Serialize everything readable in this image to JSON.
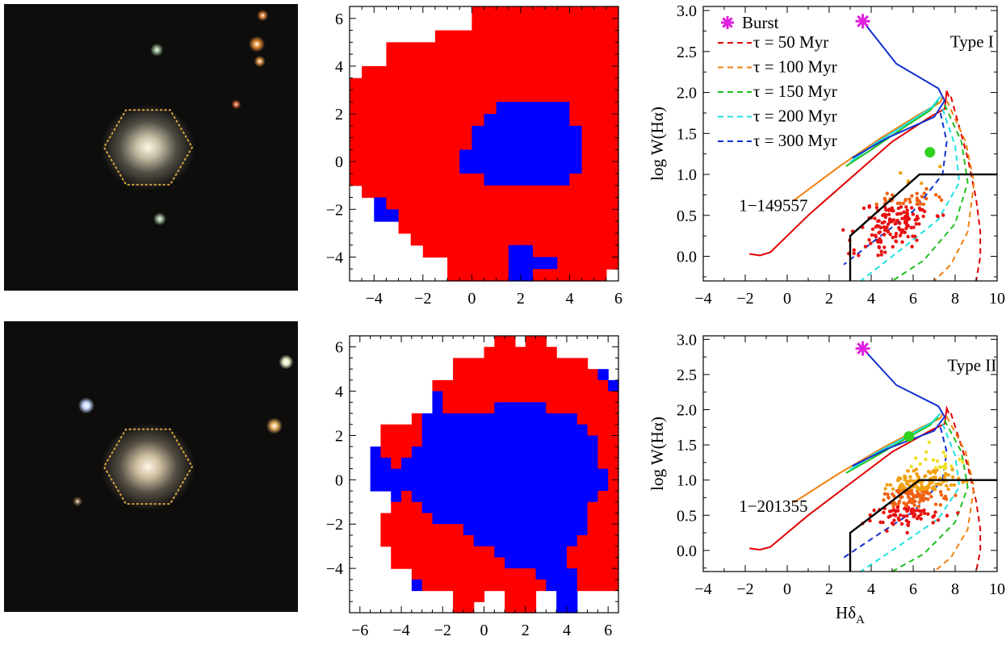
{
  "chart_data": [
    {
      "type": "image",
      "panel": "top-left",
      "galaxy_color": "#cfc8ad",
      "hexagon_color": "#d9a441",
      "background": "#0d0d0c",
      "stars": [
        {
          "x": 0.52,
          "y": 0.16,
          "color": "#8fb08a",
          "size": 0.8
        },
        {
          "x": 0.86,
          "y": 0.14,
          "color": "#e08a35",
          "size": 1.0
        },
        {
          "x": 0.88,
          "y": 0.04,
          "color": "#d07a33",
          "size": 0.7
        },
        {
          "x": 0.87,
          "y": 0.2,
          "color": "#d38e43",
          "size": 0.7
        },
        {
          "x": 0.79,
          "y": 0.35,
          "color": "#c45a33",
          "size": 0.6
        },
        {
          "x": 0.53,
          "y": 0.75,
          "color": "#93b08f",
          "size": 0.8
        }
      ]
    },
    {
      "type": "heatmap",
      "panel": "top-middle",
      "colors": {
        "a": "#ff0000",
        "b": "#0000ff"
      },
      "xlim": [
        -5,
        6
      ],
      "ylim": [
        -5,
        6.5
      ],
      "xticks": [
        -4,
        -2,
        0,
        2,
        4,
        6
      ],
      "yticks": [
        -4,
        -2,
        0,
        2,
        4,
        6
      ],
      "pixel_size": 0.5,
      "x0": -5,
      "y0": -5,
      "cells": [
        "...........................",
        "...........................",
        "...........................",
        "...............*...........",
        "............**.*..........",
        "..........RRRRRRRRRRRRRR....",
        "..........RRRRRRRRRRRRRRRR..",
        ".......RRRRRRRRRRRRRRRRRRRRR",
        "...RRRRRRRRRRRRRRRRRRRRRRRRR",
        "...RRRRRRRRRRRRRRRRRRRRRRRR",
        ".RRRRRRRRRRRRRRRRRRRRRRRRR..",
        "RRRRRRRRRRRRRRRRRRRRRRRRRRR.",
        "RRRRRRRRRRRRRRRRRRRRRRRRRRR.",
        "RRRRRRRRRRRRBBBBBBRRRRRRRRR.",
        "RRRRRRRRRRRBBBBBBBRRRRRRRRRR",
        "RRRRRRRRRRBBBBBBBBBRRRRRRRRR",
        "RRRRRRRRRRBBBBBBBBBRRRRRRBBB",
        "RRRRRRRRRBBBBBBBBBBRRRRRRBBB",
        "RRRRRRRRRBBBBBBBBBBRRRRRRBBR",
        "RRRRRRRRRRRBBBBBBBRRRRRRRRR.",
        ".RRRRRRRRRRRRRRRRRRRRRRRRR..",
        "..BRRRRRRRRRRRRRRRRRRRRRRR..",
        "..BBRRRRRRRRRRRRRRRRRRRRRR..",
        "....RRRRRRRRRRRRRRRRRRRRRR..",
        ".....RRRRRRRRRRRRRRRRRRRRR..",
        "......RRRRRRRBBRRRRRRRRRRR..",
        "........RRRRRBBBBRRRRRRR...",
        "........RRRRRBBRRRRRR......"
      ]
    },
    {
      "type": "line",
      "panel": "top-right",
      "xlim": [
        -4,
        10
      ],
      "ylim": [
        -0.3,
        3.05
      ],
      "xticks": [
        -4,
        -2,
        0,
        2,
        4,
        6,
        8,
        10
      ],
      "yticks": [
        0.0,
        0.5,
        1.0,
        1.5,
        2.0,
        2.5,
        3.0
      ],
      "ytick_labels": [
        "0.0",
        "0.5",
        "1.0",
        "1.5",
        "2.0",
        "2.5",
        "3.0"
      ],
      "ylabel": "log W(Hα)",
      "type_label": "Type I",
      "galaxy_id": "1−149557",
      "burst_point": {
        "x": 3.6,
        "y": 2.87
      },
      "endpoint": {
        "x": 6.8,
        "y": 1.27
      },
      "scatter_seed": 11,
      "scatter_n": 180,
      "scatter_center": [
        5.2,
        0.45
      ],
      "box_x": 3.0
    },
    {
      "type": "image",
      "panel": "bottom-left",
      "galaxy_color": "#d8c8a9",
      "hexagon_color": "#d9a441",
      "background": "#0e0d0c",
      "stars": [
        {
          "x": 0.28,
          "y": 0.29,
          "color": "#c8d8ff",
          "size": 1.0
        },
        {
          "x": 0.96,
          "y": 0.14,
          "color": "#e8f0c8",
          "size": 0.9
        },
        {
          "x": 0.92,
          "y": 0.36,
          "color": "#e8b060",
          "size": 1.0
        },
        {
          "x": 0.25,
          "y": 0.62,
          "color": "#8a6d4b",
          "size": 0.6
        }
      ]
    },
    {
      "type": "heatmap",
      "panel": "bottom-middle",
      "colors": {
        "a": "#ff0000",
        "b": "#0000ff"
      },
      "xlim": [
        -6.5,
        6.5
      ],
      "ylim": [
        -6,
        6.5
      ],
      "xticks": [
        -6,
        -4,
        -2,
        0,
        2,
        4,
        6
      ],
      "yticks": [
        -4,
        -2,
        0,
        2,
        4,
        6
      ],
      "pixel_size": 0.5,
      "x0": -6.5,
      "y0": -6,
      "cells": [
        ".........................",
        "..............RR.RR.........",
        ".............RRRRRRR........",
        "..........RRRRRRRRRRRRR.....",
        "..........RRRRRRRRRRRRRRB...",
        "........RRRRRRRRRRRRRRRRRBB...",
        "........BRRRRRRRRRRRRRRRRRB...",
        "........BRRRRRBBBBBRRRRRRRRR..",
        "......RBBBBBBBBBBBBBBBRRRRRR..",
        "...RRRRBBBBBBBBBBBBBBBBRRRRRR.",
        "...RRRRBBBBBBBBBBBBBBBBBRRRRRR",
        "..BRRRBBBBBBBBBBBBBBBBBBRRRRRR",
        "..BBRBBBBBBBBBBBBBBBBBBBRRRRRRR",
        "..BBBBBBBBBBBBBBBBBBBBBBBRRRRRR",
        "..BBBBBBBBBBBBBBBBBBBBBBBRRRRRR",
        "....BRBBBBBBBBBBBBBBBBBBRRRRRR",
        "....RRRBBBBBBBBBBBBBBBBRRRRRRR",
        "...RRRRRBBBBBBBBBBBBBBBRRRRRRR",
        "...RRRRRRRRBBBBBBBBBBBBRRRRRRR",
        "...RRRRRRRRRBBBBBBBBBBRRRRRRR.",
        "....RRRRRRRRRRBBBBBBBRRRRRRRR.",
        "....RRRRRRRRRRRBBBBBBRRRRRRR..",
        "......RRRRRRRRRRRRBBBBRRRRRR..",
        "......BRRRRRRRRRRRRBBBRRRR....",
        "..........RRR..RRR..BB........",
        "..........RR...RRR..BB........"
      ]
    },
    {
      "type": "line",
      "panel": "bottom-right",
      "xlim": [
        -4,
        10
      ],
      "ylim": [
        -0.3,
        3.05
      ],
      "xticks": [
        -4,
        -2,
        0,
        2,
        4,
        6,
        8,
        10
      ],
      "yticks": [
        0.0,
        0.5,
        1.0,
        1.5,
        2.0,
        2.5,
        3.0
      ],
      "ytick_labels": [
        "0.0",
        "0.5",
        "1.0",
        "1.5",
        "2.0",
        "2.5",
        "3.0"
      ],
      "ylabel": "log W(Hα)",
      "xlabel_main": "Hδ",
      "xlabel_sub": "A",
      "type_label": "Type II",
      "galaxy_id": "1−201355",
      "burst_point": {
        "x": 3.6,
        "y": 2.87
      },
      "endpoint": {
        "x": 5.8,
        "y": 1.62
      },
      "scatter_seed": 29,
      "scatter_n": 280,
      "scatter_center": [
        6.0,
        0.8
      ],
      "box_x": 3.0
    }
  ],
  "legend": {
    "burst_label": "Burst",
    "entries": [
      {
        "label": "τ = 50 Myr",
        "color": "#e00000"
      },
      {
        "label": "τ = 100 Myr",
        "color": "#f08010"
      },
      {
        "label": "τ = 150 Myr",
        "color": "#20c020"
      },
      {
        "label": "τ = 200 Myr",
        "color": "#20e0e0"
      },
      {
        "label": "τ = 300 Myr",
        "color": "#1030d0"
      }
    ],
    "burst_color": "#e020e0"
  }
}
